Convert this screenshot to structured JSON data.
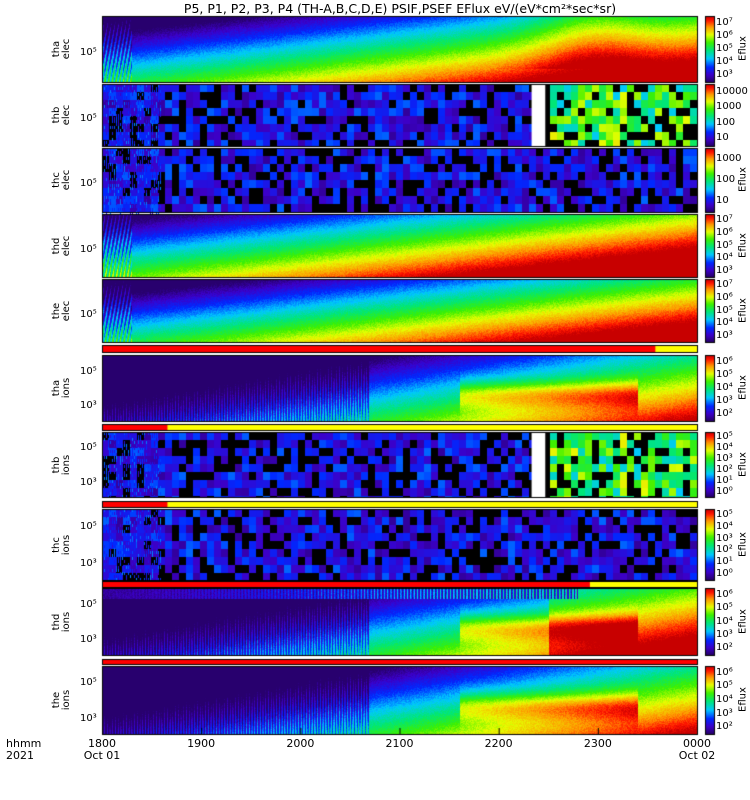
{
  "title": "P5, P1, P2, P3, P4 (TH-A,B,C,D,E) PSIF,PSEF EFlux eV/(eV*cm²*sec*sr)",
  "corner_label": {
    "line1": "hhmm",
    "line2": "2021"
  },
  "chart_data": {
    "type": "heatmap",
    "x_axis": {
      "ticks": [
        "1800",
        "1900",
        "2000",
        "2100",
        "2200",
        "2300",
        "0000"
      ],
      "date_start": "Oct 01",
      "date_end": "Oct 02",
      "range": [
        "2021-10-01 18:00",
        "2021-10-02 00:00"
      ]
    },
    "colorbar_label": "Eflux",
    "colorscale": "rainbow",
    "panels": [
      {
        "probe": "tha",
        "species": "elec",
        "ytick_label": "10⁵",
        "colorbar_ticks": [
          "10⁷",
          "10⁶",
          "10⁵",
          "10⁴",
          "10³"
        ],
        "colorbar_title": "Eflux"
      },
      {
        "probe": "thb",
        "species": "elec",
        "ytick_label": "10⁵",
        "colorbar_ticks": [
          "10000",
          "1000",
          "100",
          "10"
        ],
        "colorbar_title": ""
      },
      {
        "probe": "thc",
        "species": "elec",
        "ytick_label": "10⁵",
        "colorbar_ticks": [
          "1000",
          "100",
          "10"
        ],
        "colorbar_title": "Eflux"
      },
      {
        "probe": "thd",
        "species": "elec",
        "ytick_label": "10⁵",
        "colorbar_ticks": [
          "10⁷",
          "10⁶",
          "10⁵",
          "10⁴",
          "10³"
        ],
        "colorbar_title": "Eflux"
      },
      {
        "probe": "the",
        "species": "elec",
        "ytick_label": "10⁵",
        "colorbar_ticks": [
          "10⁷",
          "10⁶",
          "10⁵",
          "10⁴",
          "10³"
        ],
        "colorbar_title": "Eflux"
      },
      {
        "probe": "tha",
        "species": "ions",
        "ytick_labels": [
          "10⁵",
          "10³"
        ],
        "colorbar_ticks": [
          "10⁶",
          "10⁵",
          "10⁴",
          "10³",
          "10²"
        ],
        "colorbar_title": "Eflux"
      },
      {
        "probe": "thb",
        "species": "ions",
        "ytick_labels": [
          "10⁵",
          "10³"
        ],
        "colorbar_ticks": [
          "10⁵",
          "10⁴",
          "10³",
          "10²",
          "10¹",
          "10⁰"
        ],
        "colorbar_title": "Eflux"
      },
      {
        "probe": "thc",
        "species": "ions",
        "ytick_labels": [
          "10⁵",
          "10³"
        ],
        "colorbar_ticks": [
          "10⁵",
          "10⁴",
          "10³",
          "10²",
          "10¹",
          "10⁰"
        ],
        "colorbar_title": "Eflux"
      },
      {
        "probe": "thd",
        "species": "ions",
        "ytick_labels": [
          "10⁵",
          "10³"
        ],
        "colorbar_ticks": [
          "10⁶",
          "10⁵",
          "10⁴",
          "10³",
          "10²"
        ],
        "colorbar_title": "Eflux"
      },
      {
        "probe": "the",
        "species": "ions",
        "ytick_labels": [
          "10⁵",
          "10³"
        ],
        "colorbar_ticks": [
          "10⁶",
          "10⁵",
          "10⁴",
          "10³",
          "10²"
        ],
        "colorbar_title": "Eflux"
      }
    ],
    "colors": {
      "high": "#ff0000",
      "low": "#000080",
      "fill_red": "#ff0000",
      "fill_yellow": "#ffff00"
    }
  }
}
